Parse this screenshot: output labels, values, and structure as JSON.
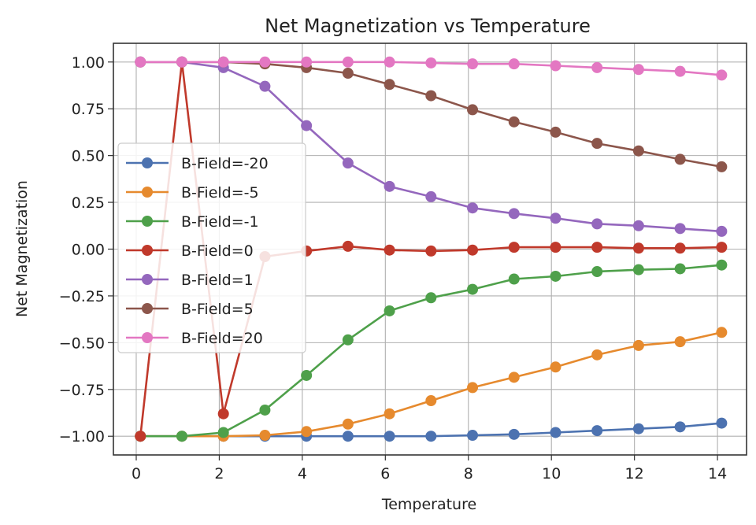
{
  "chart_data": {
    "type": "line",
    "title": "Net Magnetization vs Temperature",
    "xlabel": "Temperature",
    "ylabel": "Net Magnetization",
    "xlim": [
      -0.55,
      14.7
    ],
    "ylim": [
      -1.1,
      1.1
    ],
    "xticks": [
      0,
      2,
      4,
      6,
      8,
      10,
      12,
      14
    ],
    "xtick_labels": [
      "0",
      "2",
      "4",
      "6",
      "8",
      "10",
      "12",
      "14"
    ],
    "yticks": [
      -1.0,
      -0.75,
      -0.5,
      -0.25,
      0.0,
      0.25,
      0.5,
      0.75,
      1.0
    ],
    "ytick_labels": [
      "−1.00",
      "−0.75",
      "−0.50",
      "−0.25",
      "0.00",
      "0.25",
      "0.50",
      "0.75",
      "1.00"
    ],
    "grid": true,
    "legend_position": "center-left",
    "x": [
      0.1,
      1.1,
      2.1,
      3.1,
      4.1,
      5.1,
      6.1,
      7.1,
      8.1,
      9.1,
      10.1,
      11.1,
      12.1,
      13.1,
      14.1
    ],
    "series": [
      {
        "name": "B-Field=-20",
        "color": "#4c72b0",
        "values": [
          -1.0,
          -1.0,
          -1.0,
          -1.0,
          -1.0,
          -1.0,
          -1.0,
          -1.0,
          -0.995,
          -0.99,
          -0.98,
          -0.97,
          -0.96,
          -0.95,
          -0.93
        ]
      },
      {
        "name": "B-Field=-5",
        "color": "#e68a2e",
        "values": [
          -1.0,
          -1.0,
          -1.0,
          -0.995,
          -0.975,
          -0.935,
          -0.88,
          -0.81,
          -0.74,
          -0.685,
          -0.63,
          -0.565,
          -0.515,
          -0.495,
          -0.445
        ]
      },
      {
        "name": "B-Field=-1",
        "color": "#4ea04a",
        "values": [
          -1.0,
          -1.0,
          -0.98,
          -0.86,
          -0.675,
          -0.485,
          -0.33,
          -0.26,
          -0.215,
          -0.16,
          -0.145,
          -0.12,
          -0.11,
          -0.105,
          -0.085
        ]
      },
      {
        "name": "B-Field=0",
        "color": "#c0392b",
        "values": [
          -1.0,
          1.0,
          -0.88,
          -0.04,
          -0.01,
          0.015,
          -0.005,
          -0.01,
          -0.005,
          0.01,
          0.01,
          0.01,
          0.005,
          0.005,
          0.01
        ]
      },
      {
        "name": "B-Field=1",
        "color": "#9467bd",
        "values": [
          1.0,
          1.0,
          0.97,
          0.87,
          0.66,
          0.46,
          0.335,
          0.28,
          0.22,
          0.19,
          0.165,
          0.135,
          0.125,
          0.11,
          0.095
        ]
      },
      {
        "name": "B-Field=5",
        "color": "#8c564b",
        "values": [
          1.0,
          1.0,
          1.0,
          0.99,
          0.97,
          0.94,
          0.88,
          0.82,
          0.745,
          0.68,
          0.625,
          0.565,
          0.525,
          0.48,
          0.44
        ]
      },
      {
        "name": "B-Field=20",
        "color": "#e377c2",
        "values": [
          1.0,
          1.0,
          1.0,
          1.0,
          1.0,
          1.0,
          1.0,
          0.995,
          0.99,
          0.99,
          0.98,
          0.97,
          0.96,
          0.95,
          0.93
        ]
      }
    ]
  }
}
